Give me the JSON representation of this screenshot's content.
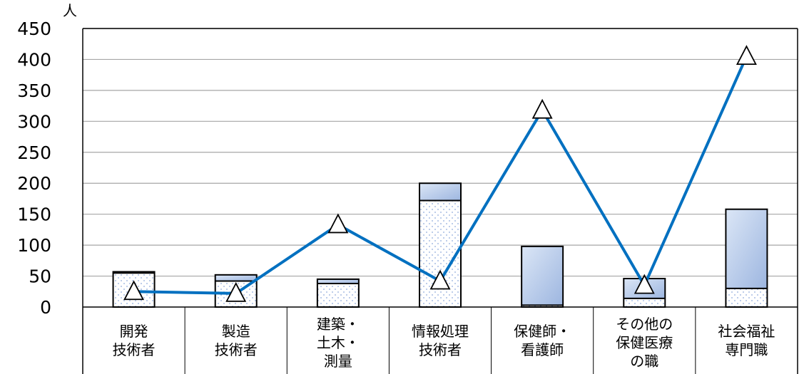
{
  "chart_data": {
    "type": "bar",
    "y_unit": "人",
    "ylim": [
      0,
      450
    ],
    "y_ticks": [
      0,
      50,
      100,
      150,
      200,
      250,
      300,
      350,
      400,
      450
    ],
    "grid": true,
    "categories": [
      [
        "開発",
        "技術者"
      ],
      [
        "製造",
        "技術者"
      ],
      [
        "建築・",
        "土木・",
        "測量"
      ],
      [
        "情報処理",
        "技術者"
      ],
      [
        "保健師・",
        "看護師"
      ],
      [
        "その他の",
        "保健医療",
        "の職"
      ],
      [
        "社会福祉",
        "専門職"
      ]
    ],
    "series": [
      {
        "style": "dotted",
        "values": [
          55,
          42,
          38,
          172,
          3,
          14,
          30
        ]
      },
      {
        "style": "gradient",
        "values": [
          2,
          10,
          7,
          28,
          95,
          32,
          128
        ]
      },
      {
        "style": "line-triangle",
        "color": "#0070C0",
        "values": [
          25,
          22,
          133,
          42,
          318,
          35,
          405
        ]
      }
    ],
    "colors": {
      "line": "#0070C0",
      "bar_fill_top": "#dbe6f6",
      "bar_fill_bottom": "#9db6e0",
      "dot": "#8ea9db",
      "grid": "#a6a6a6"
    }
  }
}
